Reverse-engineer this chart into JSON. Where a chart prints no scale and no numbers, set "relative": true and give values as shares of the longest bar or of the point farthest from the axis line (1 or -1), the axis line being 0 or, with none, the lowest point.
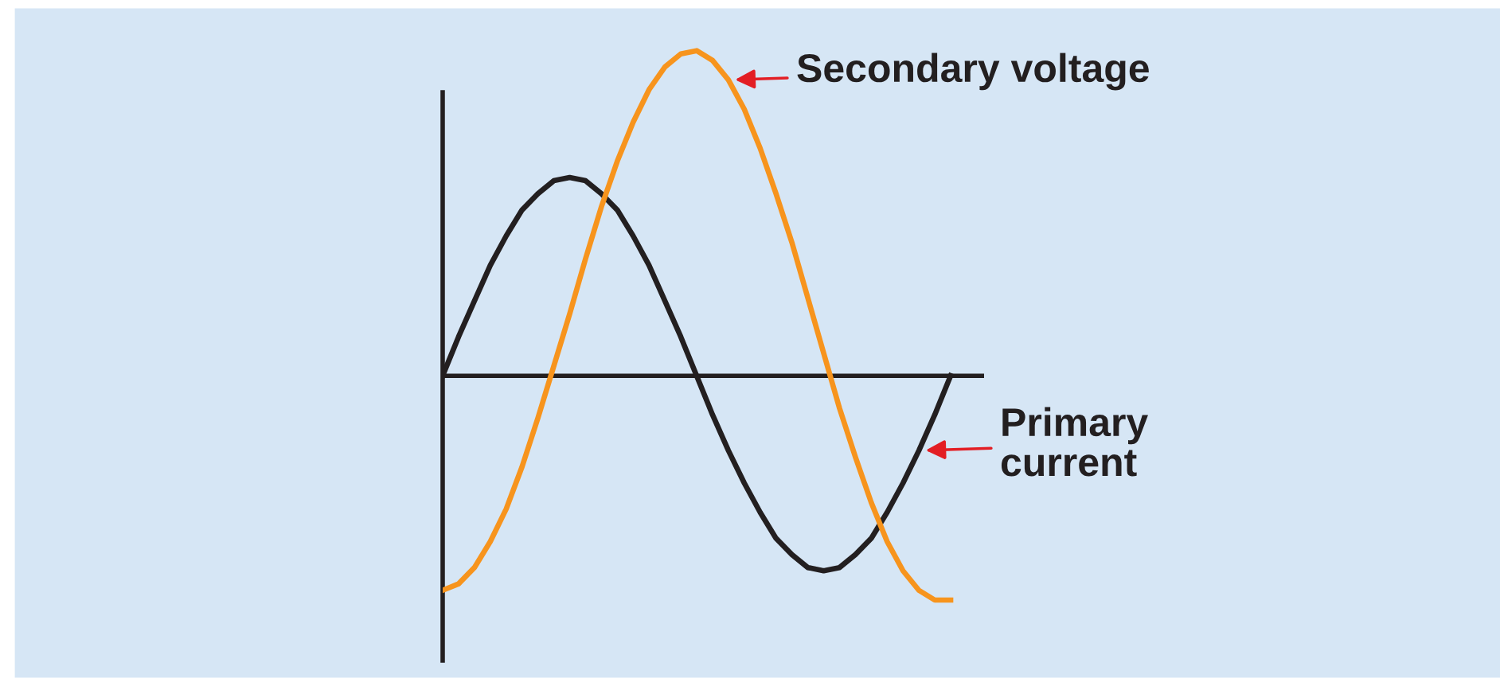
{
  "chart_data": {
    "type": "line",
    "relative": true,
    "legend": false,
    "marker": "none",
    "line_style": "solid",
    "categories": [
      null,
      null,
      null,
      null,
      null,
      null,
      null,
      null,
      null,
      null,
      null,
      null,
      null,
      null,
      null,
      null,
      null,
      null,
      null,
      null,
      null,
      null,
      null,
      null,
      null,
      null,
      null,
      null,
      null,
      null,
      null,
      null,
      null
    ],
    "series": [
      {
        "name": "Primary current",
        "color": "#231f20",
        "values": [
          0,
          0.12,
          0.23,
          0.34,
          0.43,
          0.51,
          0.56,
          0.6,
          0.61,
          0.6,
          0.56,
          0.51,
          0.43,
          0.34,
          0.23,
          0.12,
          0,
          -0.12,
          -0.23,
          -0.33,
          -0.42,
          -0.5,
          -0.55,
          -0.59,
          -0.6,
          -0.59,
          -0.55,
          -0.5,
          -0.42,
          -0.33,
          -0.23,
          -0.12,
          0
        ]
      },
      {
        "name": "Secondary voltage",
        "color": "#f7941d",
        "values": [
          -0.66,
          -0.64,
          -0.59,
          -0.51,
          -0.41,
          -0.28,
          -0.13,
          0.03,
          0.19,
          0.36,
          0.52,
          0.66,
          0.78,
          0.88,
          0.95,
          0.99,
          1.0,
          0.97,
          0.91,
          0.82,
          0.7,
          0.56,
          0.41,
          0.24,
          0.07,
          -0.1,
          -0.25,
          -0.39,
          -0.51,
          -0.6,
          -0.66,
          -0.69,
          -0.69
        ]
      }
    ]
  }
}
